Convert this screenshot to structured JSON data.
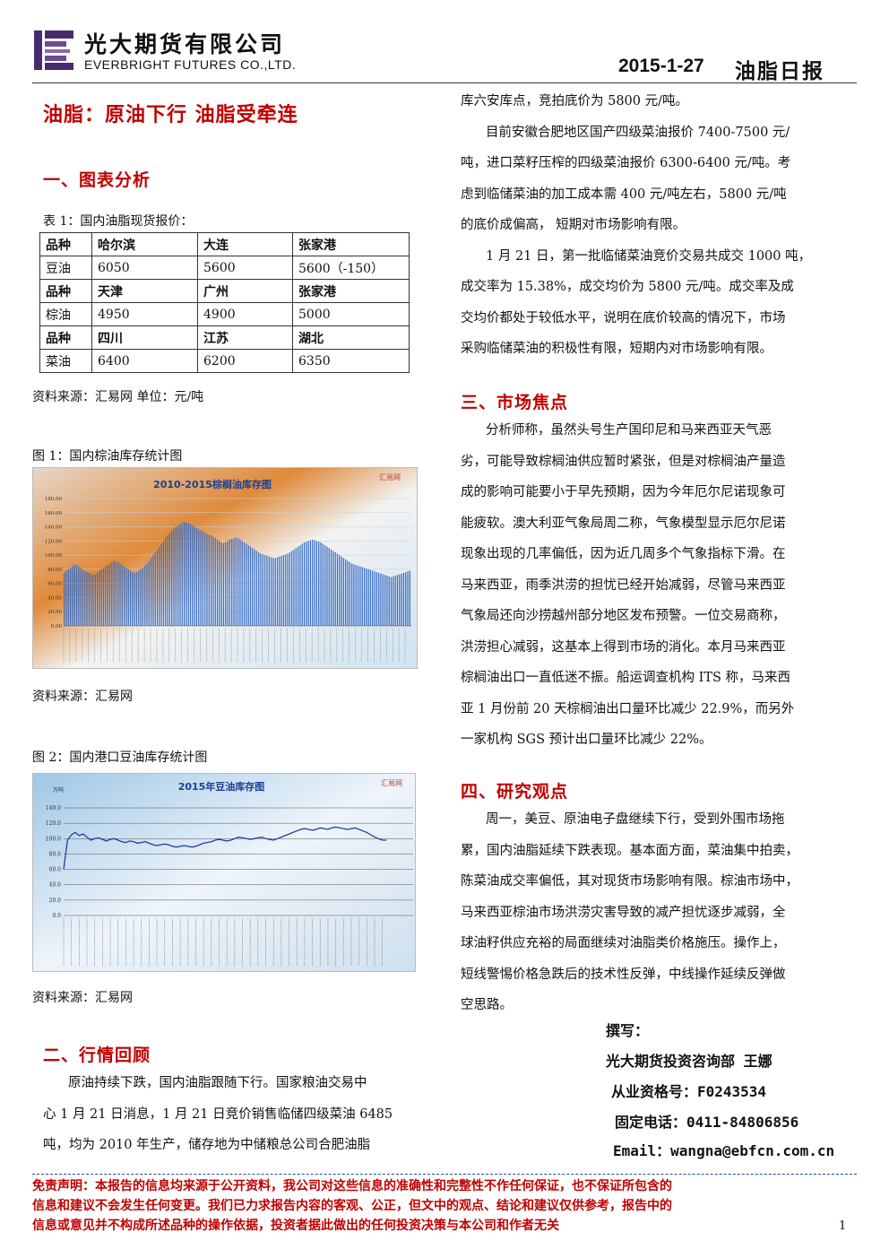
{
  "header": {
    "company_cn": "光大期货有限公司",
    "company_en": "EVERBRIGHT FUTURES CO.,LTD.",
    "date": "2015-1-27",
    "report_name": "油脂日报",
    "brand_color": "#4a2a6e"
  },
  "title": "油脂：原油下行 油脂受牵连",
  "section1": {
    "heading": "一、图表分析",
    "table_caption": "表 1：国内油脂现货报价：",
    "table": [
      {
        "header": [
          "品种",
          "哈尔滨",
          "大连",
          "张家港"
        ],
        "row": [
          "豆油",
          "6050",
          "5600",
          "5600（-150）"
        ]
      },
      {
        "header": [
          "品种",
          "天津",
          "广州",
          "张家港"
        ],
        "row": [
          "棕油",
          "4950",
          "4900",
          "5000"
        ]
      },
      {
        "header": [
          "品种",
          "四川",
          "江苏",
          "湖北"
        ],
        "row": [
          "菜油",
          "6400",
          "6200",
          "6350"
        ]
      }
    ],
    "table_source": "资料来源：汇易网   单位：元/吨",
    "fig1_caption": "图 1：国内棕油库存统计图",
    "fig1_source": "资料来源：汇易网",
    "fig2_caption": "图 2：国内港口豆油库存统计图",
    "fig2_source": "资料来源：汇易网"
  },
  "chart_data": [
    {
      "type": "bar",
      "title": "2010-2015棕榈油库存图",
      "watermark": "汇易网",
      "ylim": [
        0,
        180
      ],
      "yticks": [
        "0.00",
        "20.00",
        "40.00",
        "60.00",
        "80.00",
        "100.00",
        "120.00",
        "140.00",
        "160.00",
        "180.00"
      ],
      "values": [
        75,
        78,
        80,
        82,
        85,
        87,
        86,
        84,
        82,
        80,
        78,
        76,
        75,
        74,
        72,
        73,
        75,
        78,
        80,
        82,
        84,
        86,
        88,
        90,
        92,
        91,
        90,
        88,
        86,
        84,
        82,
        80,
        78,
        76,
        75,
        76,
        78,
        80,
        82,
        85,
        88,
        92,
        96,
        100,
        104,
        108,
        112,
        116,
        120,
        124,
        128,
        132,
        135,
        138,
        140,
        142,
        144,
        146,
        147,
        146,
        145,
        144,
        142,
        140,
        138,
        136,
        135,
        134,
        132,
        130,
        129,
        128,
        126,
        124,
        122,
        120,
        118,
        117,
        118,
        120,
        122,
        123,
        124,
        125,
        124,
        122,
        120,
        118,
        116,
        114,
        112,
        110,
        108,
        106,
        104,
        102,
        101,
        100,
        99,
        98,
        97,
        96,
        96,
        97,
        98,
        99,
        100,
        101,
        102,
        104,
        106,
        108,
        110,
        112,
        114,
        116,
        118,
        119,
        120,
        121,
        122,
        121,
        120,
        119,
        118,
        116,
        114,
        112,
        110,
        108,
        106,
        104,
        102,
        100,
        98,
        96,
        94,
        92,
        90,
        88,
        87,
        86,
        85,
        84,
        83,
        82,
        81,
        80,
        79,
        78,
        77,
        76,
        75,
        74,
        73,
        72,
        71,
        70,
        69,
        70,
        71,
        72,
        73,
        74,
        75,
        76,
        77,
        78
      ]
    },
    {
      "type": "line",
      "title": "2015年豆油库存图",
      "watermark": "汇易网",
      "ylabel": "万吨",
      "ylim": [
        0,
        140
      ],
      "yticks": [
        "0.0",
        "20.0",
        "40.0",
        "60.0",
        "80.0",
        "100.0",
        "120.0",
        "140.0"
      ],
      "values": [
        60,
        98,
        105,
        108,
        104,
        106,
        102,
        98,
        100,
        101,
        99,
        97,
        99,
        100,
        98,
        96,
        95,
        97,
        96,
        94,
        95,
        96,
        94,
        92,
        91,
        92,
        93,
        92,
        90,
        89,
        90,
        91,
        90,
        89,
        90,
        92,
        94,
        95,
        96,
        98,
        99,
        98,
        97,
        98,
        100,
        102,
        101,
        100,
        99,
        100,
        101,
        102,
        100,
        99,
        98,
        100,
        102,
        104,
        106,
        108,
        110,
        112,
        113,
        112,
        111,
        112,
        114,
        113,
        112,
        114,
        115,
        114,
        113,
        112,
        113,
        114,
        112,
        110,
        108,
        105,
        102,
        100,
        98,
        98
      ]
    }
  ],
  "section2": {
    "heading": "二、行情回顾",
    "lines": [
      "原油持续下跌，国内油脂跟随下行。国家粮油交易中",
      "心 1 月 21 日消息，1 月 21 日竞价销售临储四级菜油 6485",
      "吨，均为 2010 年生产，储存地为中储粮总公司合肥油脂",
      "库六安库点，竞拍底价为 5800 元/吨。",
      "目前安徽合肥地区国产四级菜油报价 7400-7500 元/",
      "吨，进口菜籽压榨的四级菜油报价 6300-6400 元/吨。考",
      "虑到临储菜油的加工成本需 400 元/吨左右，5800 元/吨",
      "的底价成偏高， 短期对市场影响有限。",
      "1 月 21 日，第一批临储菜油竞价交易共成交 1000 吨，",
      "成交率为 15.38%，成交均价为 5800 元/吨。成交率及成",
      "交均价都处于较低水平，说明在底价较高的情况下，市场",
      "采购临储菜油的积极性有限，短期内对市场影响有限。"
    ]
  },
  "section3": {
    "heading": "三、市场焦点",
    "lines": [
      "分析师称，虽然头号生产国印尼和马来西亚天气恶",
      "劣，可能导致棕榈油供应暂时紧张，但是对棕榈油产量造",
      "成的影响可能要小于早先预期，因为今年厄尔尼诺现象可",
      "能疲软。澳大利亚气象局周二称，气象模型显示厄尔尼诺",
      "现象出现的几率偏低，因为近几周多个气象指标下滑。在",
      "马来西亚，雨季洪涝的担忧已经开始减弱，尽管马来西亚",
      "气象局还向沙捞越州部分地区发布预警。一位交易商称，",
      "洪涝担心减弱，这基本上得到市场的消化。本月马来西亚",
      "棕榈油出口一直低迷不振。船运调查机构 ITS 称，马来西",
      "亚 1 月份前 20 天棕榈油出口量环比减少 22.9%，而另外",
      "一家机构 SGS 预计出口量环比减少 22%。"
    ]
  },
  "section4": {
    "heading": "四、研究观点",
    "lines": [
      "周一，美豆、原油电子盘继续下行，受到外围市场拖",
      "累，国内油脂延续下跌表现。基本面方面，菜油集中拍卖，",
      "陈菜油成交率偏低，其对现货市场影响有限。棕油市场中，",
      "马来西亚棕油市场洪涝灾害导致的减产担忧逐步减弱，全",
      "球油籽供应充裕的局面继续对油脂类价格施压。操作上，",
      "短线警惕价格急跌后的技术性反弹，中线操作延续反弹做",
      "空思路。"
    ]
  },
  "author": {
    "label": "撰写：",
    "dept": "光大期货投资咨询部 王娜",
    "cert": "从业资格号：F0243534",
    "phone": "固定电话：0411-84806856",
    "email": "Email：wangna@ebfcn.com.cn"
  },
  "disclaimer": [
    "免责声明：本报告的信息均来源于公开资料，我公司对这些信息的准确性和完整性不作任何保证，也不保证所包含的",
    "信息和建议不会发生任何变更。我们已力求报告内容的客观、公正，但文中的观点、结论和建议仅供参考，报告中的",
    "信息或意见并不构成所述品种的操作依据，投资者据此做出的任何投资决策与本公司和作者无关"
  ],
  "page_number": "1"
}
